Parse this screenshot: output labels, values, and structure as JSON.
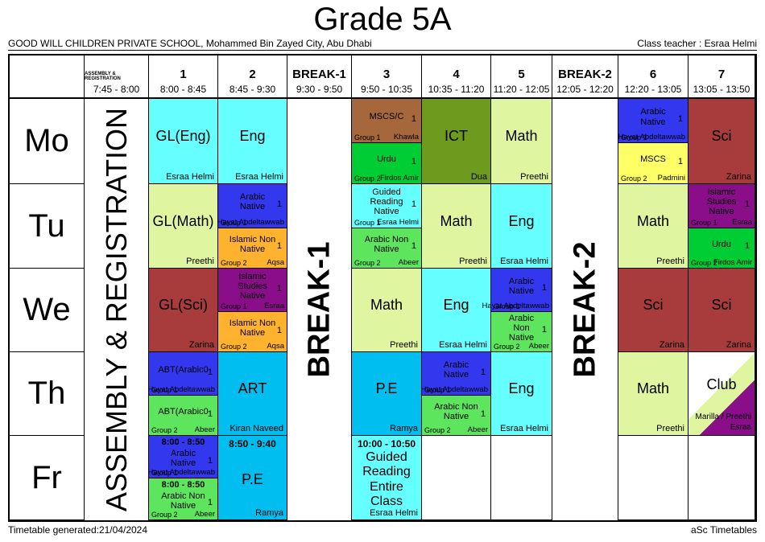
{
  "title": "Grade 5A",
  "school": "GOOD WILL CHILDREN PRIVATE SCHOOL, Mohammed Bin Zayed City, Abu Dhabi",
  "class_teacher": "Class teacher : Esraa Helmi",
  "footer": {
    "generated": "Timetable generated:21/04/2024",
    "brand": "aSc Timetables"
  },
  "bands": {
    "assembly": "ASSEMBLY & REGISTRATION",
    "break1": "BREAK-1",
    "break2": "BREAK-2"
  },
  "columns": [
    {
      "id": "assembly",
      "label": "ASSEMBLY & REGISTRATION",
      "time": "7:45 - 8:00"
    },
    {
      "id": "p1",
      "label": "1",
      "time": "8:00 - 8:45"
    },
    {
      "id": "p2",
      "label": "2",
      "time": "8:45 - 9:30"
    },
    {
      "id": "break1",
      "label": "BREAK-1",
      "time": "9:30 - 9:50"
    },
    {
      "id": "p3",
      "label": "3",
      "time": "9:50 - 10:35"
    },
    {
      "id": "p4",
      "label": "4",
      "time": "10:35 - 11:20"
    },
    {
      "id": "p5",
      "label": "5",
      "time": "11:20 - 12:05"
    },
    {
      "id": "break2",
      "label": "BREAK-2",
      "time": "12:05 - 12:20"
    },
    {
      "id": "p6",
      "label": "6",
      "time": "12:20 - 13:05"
    },
    {
      "id": "p7",
      "label": "7",
      "time": "13:05 - 13:50"
    }
  ],
  "days": [
    {
      "id": "mo",
      "label": "Mo"
    },
    {
      "id": "tu",
      "label": "Tu"
    },
    {
      "id": "we",
      "label": "We"
    },
    {
      "id": "th",
      "label": "Th"
    },
    {
      "id": "fr",
      "label": "Fr"
    }
  ],
  "colors": {
    "cyan": "#66FFFF",
    "pale_green": "#E0F5A0",
    "brown": "#A5673B",
    "bright_green": "#00CC33",
    "olive": "#6E9A1E",
    "blue": "#3338EE",
    "yellow": "#FFFF66",
    "dark_red": "#A83B3B",
    "orange": "#FFB22D",
    "purple": "#8A0D8A",
    "mid_green": "#5DE55D",
    "light_blue": "#00BFF0"
  },
  "grid": {
    "mo": {
      "p1": {
        "type": "single",
        "subject": "GL(Eng)",
        "teacher": "Esraa Helmi",
        "color": "cyan"
      },
      "p2": {
        "type": "single",
        "subject": "Eng",
        "teacher": "Esraa Helmi",
        "color": "cyan"
      },
      "p3": {
        "type": "split",
        "top": {
          "subject": "MSCS/C",
          "num": "1",
          "group": "Group 1",
          "teacher": "Khawla",
          "color": "brown"
        },
        "bottom": {
          "subject": "Urdu",
          "num": "1",
          "group": "Group 2",
          "teacher": "Firdos Amir",
          "color": "bright_green"
        }
      },
      "p4": {
        "type": "single",
        "subject": "ICT",
        "teacher": "Dua",
        "color": "olive"
      },
      "p5": {
        "type": "single",
        "subject": "Math",
        "teacher": "Preethi",
        "color": "pale_green"
      },
      "p6": {
        "type": "split",
        "top": {
          "subject": "Arabic Native",
          "num": "1",
          "group": "Group 1",
          "teacher": "Hayat Abdeltawwab",
          "color": "blue"
        },
        "bottom": {
          "subject": "MSCS",
          "num": "1",
          "group": "Group 2",
          "teacher": "Padmini",
          "color": "yellow"
        }
      },
      "p7": {
        "type": "single",
        "subject": "Sci",
        "teacher": "Zarina",
        "color": "dark_red"
      }
    },
    "tu": {
      "p1": {
        "type": "single",
        "subject": "GL(Math)",
        "teacher": "Preethi",
        "color": "pale_green"
      },
      "p2": {
        "type": "split",
        "top": {
          "subject": "Arabic Native",
          "num": "1",
          "group": "Group 1",
          "teacher": "Hayat Abdeltawwab",
          "color": "blue"
        },
        "bottom": {
          "subject": "Islamic Non Native",
          "num": "1",
          "group": "Group 2",
          "teacher": "Aqsa",
          "color": "orange"
        }
      },
      "p3": {
        "type": "split",
        "top": {
          "subject": "Guided Reading Native",
          "num": "1",
          "group": "Group 1",
          "teacher": "Esraa Helmi",
          "color": "cyan"
        },
        "bottom": {
          "subject": "Arabic Non Native",
          "num": "1",
          "group": "Group 2",
          "teacher": "Abeer",
          "color": "mid_green"
        }
      },
      "p4": {
        "type": "single",
        "subject": "Math",
        "teacher": "Preethi",
        "color": "pale_green"
      },
      "p5": {
        "type": "single",
        "subject": "Eng",
        "teacher": "Esraa Helmi",
        "color": "cyan"
      },
      "p6": {
        "type": "single",
        "subject": "Math",
        "teacher": "Preethi",
        "color": "pale_green"
      },
      "p7": {
        "type": "split",
        "top": {
          "subject": "Islamic Studies Native",
          "num": "1",
          "group": "Group 1",
          "teacher": "Esraa",
          "color": "purple"
        },
        "bottom": {
          "subject": "Urdu",
          "num": "1",
          "group": "Group 2",
          "teacher": "Firdos Amir",
          "color": "bright_green"
        }
      }
    },
    "we": {
      "p1": {
        "type": "single",
        "subject": "GL(Sci)",
        "teacher": "Zarina",
        "color": "dark_red"
      },
      "p2": {
        "type": "split",
        "top": {
          "subject": "Islamic Studies Native",
          "num": "1",
          "group": "Group 1",
          "teacher": "Esraa",
          "color": "purple"
        },
        "bottom": {
          "subject": "Islamic Non Native",
          "num": "1",
          "group": "Group 2",
          "teacher": "Aqsa",
          "color": "orange"
        }
      },
      "p3": {
        "type": "single",
        "subject": "Math",
        "teacher": "Preethi",
        "color": "pale_green"
      },
      "p4": {
        "type": "single",
        "subject": "Eng",
        "teacher": "Esraa Helmi",
        "color": "cyan"
      },
      "p5": {
        "type": "split",
        "top": {
          "subject": "Arabic Native",
          "num": "1",
          "group": "Group 1",
          "teacher": "Hayat Abdeltawwab",
          "color": "blue"
        },
        "bottom": {
          "subject": "Arabic Non Native",
          "num": "1",
          "group": "Group 2",
          "teacher": "Abeer",
          "color": "mid_green"
        }
      },
      "p6": {
        "type": "single",
        "subject": "Sci",
        "teacher": "Zarina",
        "color": "dark_red"
      },
      "p7": {
        "type": "single",
        "subject": "Sci",
        "teacher": "Zarina",
        "color": "dark_red"
      }
    },
    "th": {
      "p1": {
        "type": "split",
        "top": {
          "subject": "ABT(Arabic0",
          "num": "1",
          "group": "Group 1",
          "teacher": "Hayat Abdeltawwab",
          "color": "blue"
        },
        "bottom": {
          "subject": "ABT(Arabic0",
          "num": "1",
          "group": "Group 2",
          "teacher": "Abeer",
          "color": "mid_green"
        }
      },
      "p2": {
        "type": "single",
        "subject": "ART",
        "teacher": "Kiran Naveed",
        "color": "light_blue"
      },
      "p3": {
        "type": "single",
        "subject": "P.E",
        "teacher": "Ramya",
        "color": "light_blue"
      },
      "p4": {
        "type": "split",
        "top": {
          "subject": "Arabic Native",
          "num": "1",
          "group": "Group 1",
          "teacher": "Hayat Abdeltawwab",
          "color": "blue"
        },
        "bottom": {
          "subject": "Arabic Non Native",
          "num": "1",
          "group": "Group 2",
          "teacher": "Abeer",
          "color": "mid_green"
        }
      },
      "p5": {
        "type": "single",
        "subject": "Eng",
        "teacher": "Esraa Helmi",
        "color": "cyan"
      },
      "p6": {
        "type": "single",
        "subject": "Math",
        "teacher": "Preethi",
        "color": "pale_green"
      },
      "p7": {
        "type": "club",
        "subject": "Club",
        "teacher": "Marilla / Preethi",
        "teacher2": "Esraa"
      }
    },
    "fr": {
      "p1": {
        "type": "split",
        "top": {
          "time": "8:00 - 8:50",
          "subject": "Arabic Native",
          "num": "1",
          "group": "Group 1",
          "teacher": "Hayat Abdeltawwab",
          "color": "blue"
        },
        "bottom": {
          "time": "8:00 - 8:50",
          "subject": "Arabic Non Native",
          "num": "1",
          "group": "Group 2",
          "teacher": "Abeer",
          "color": "mid_green"
        }
      },
      "p2": {
        "type": "single",
        "time": "8:50 - 9:40",
        "subject": "P.E",
        "teacher": "Ramya",
        "color": "light_blue"
      },
      "p3": {
        "type": "single",
        "time": "10:00 - 10:50",
        "subject": "Guided Reading Entire Class",
        "teacher": "Esraa Helmi",
        "color": "cyan"
      },
      "p4": null,
      "p5": null,
      "p6": null,
      "p7": null
    }
  }
}
